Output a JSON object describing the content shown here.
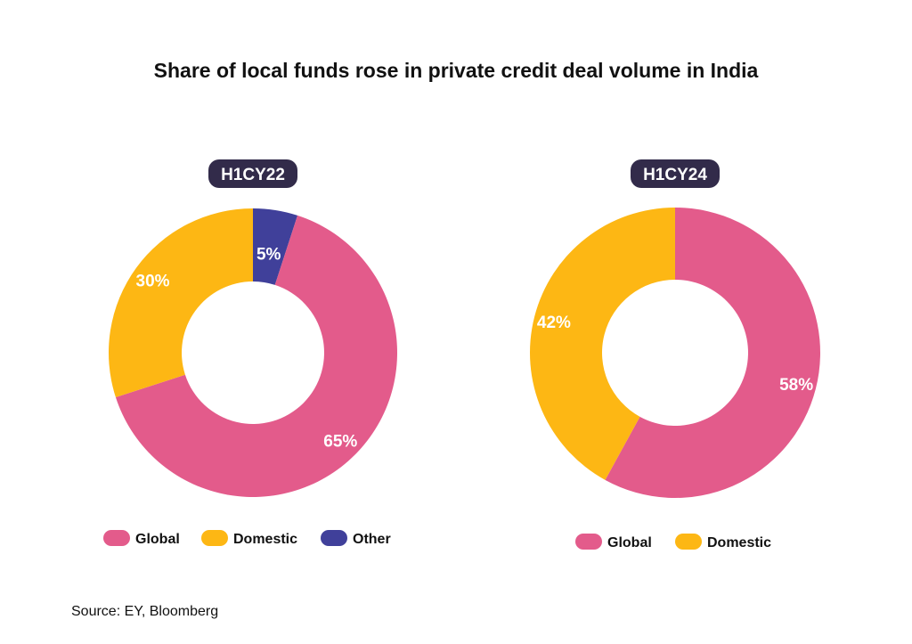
{
  "title": "Share of local funds rose in private credit deal volume in India",
  "source": "Source: EY, Bloomberg",
  "colors": {
    "Global": "#E35B8B",
    "Domestic": "#FDB714",
    "Other": "#40409A",
    "pill": "#322B4A"
  },
  "chart_data": [
    {
      "type": "pie",
      "donut": true,
      "title": "H1CY22",
      "slices": [
        {
          "label": "Other",
          "value": 5,
          "text": "5%"
        },
        {
          "label": "Global",
          "value": 65,
          "text": "65%"
        },
        {
          "label": "Domestic",
          "value": 30,
          "text": "30%"
        }
      ],
      "legend": [
        "Global",
        "Domestic",
        "Other"
      ],
      "legend_placement": "bottom"
    },
    {
      "type": "pie",
      "donut": true,
      "title": "H1CY24",
      "slices": [
        {
          "label": "Global",
          "value": 58,
          "text": "58%"
        },
        {
          "label": "Domestic",
          "value": 42,
          "text": "42%"
        }
      ],
      "legend": [
        "Global",
        "Domestic"
      ],
      "legend_placement": "bottom"
    }
  ]
}
